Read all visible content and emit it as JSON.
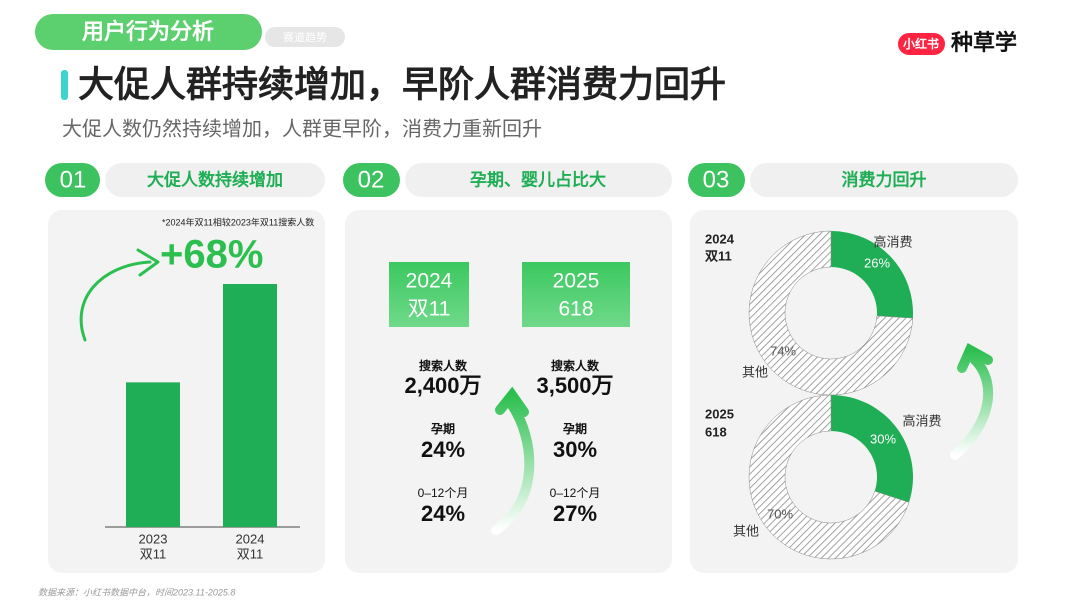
{
  "header": {
    "section": "用户行为分析",
    "tag": "赛道趋势",
    "brand_badge": "小红书",
    "brand": "种草学",
    "title": "大促人群持续增加，早阶人群消费力回升",
    "subtitle": "大促人数仍然持续增加，人群更早阶，消费力重新回升"
  },
  "panels": [
    {
      "number": "01",
      "label": "大促人数持续增加"
    },
    {
      "number": "02",
      "label": "孕期、婴儿占比大",
      "columns": [
        {
          "period": [
            "2024",
            "双11"
          ],
          "search_label": "搜索人数",
          "search": "2,400万",
          "pregnancy_label": "孕期",
          "pregnancy": "24%",
          "infant_label": "0–12个月",
          "infant": "24%"
        },
        {
          "period": [
            "2025",
            "618"
          ],
          "search_label": "搜索人数",
          "search": "3,500万",
          "pregnancy_label": "孕期",
          "pregnancy": "30%",
          "infant_label": "0–12个月",
          "infant": "27%"
        }
      ]
    },
    {
      "number": "03",
      "label": "消费力回升"
    }
  ],
  "chart_data": [
    {
      "type": "bar",
      "note": "*2024年双11相较2023年双11搜索人数",
      "annotation": "+68%",
      "categories": [
        [
          "2023",
          "双11"
        ],
        [
          "2024",
          "双11"
        ]
      ],
      "values": [
        100,
        168
      ],
      "color": "#1fae55"
    },
    {
      "type": "pie",
      "title": [
        "2024",
        "双11"
      ],
      "categories": [
        "高消费",
        "其他"
      ],
      "values": [
        26,
        74
      ],
      "value_labels": [
        "26%",
        "74%"
      ],
      "colors": [
        "#1fae55",
        "#8a8a8a"
      ]
    },
    {
      "type": "pie",
      "title": [
        "2025",
        "618"
      ],
      "categories": [
        "高消费",
        "其他"
      ],
      "values": [
        30,
        70
      ],
      "value_labels": [
        "30%",
        "70%"
      ],
      "colors": [
        "#1fae55",
        "#8a8a8a"
      ]
    }
  ],
  "footer": "数据来源：小红书数据中台，时间2023.11-2025.8"
}
